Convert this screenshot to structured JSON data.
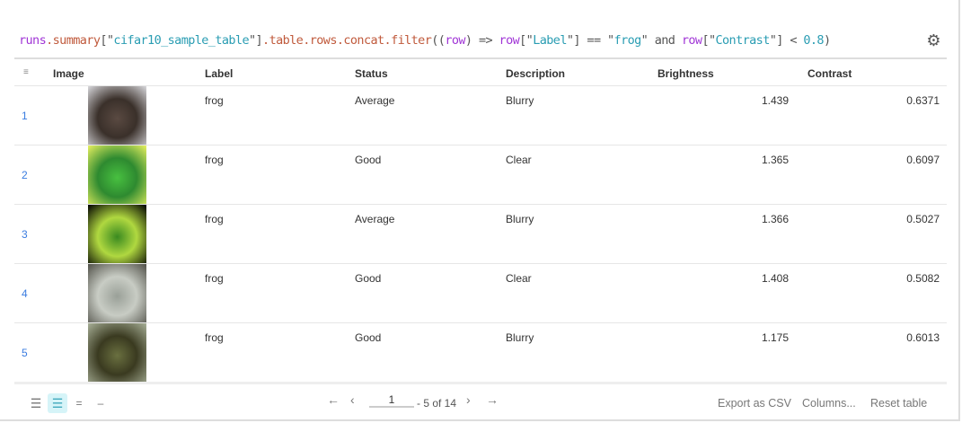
{
  "query": {
    "p1": "runs",
    "o1": ".summary",
    "d1": "[\"",
    "s1": "cifar10_sample_table",
    "d2": "\"]",
    "o2": ".table.rows.concat.filter",
    "d3": "((",
    "p2": "row",
    "d4": ") => ",
    "p3": "row",
    "d5": "[\"",
    "s2": "Label",
    "d6": "\"] == \"",
    "s3": "frog",
    "d7": "\" and ",
    "p4": "row",
    "d8": "[\"",
    "s4": "Contrast",
    "d9": "\"] < ",
    "s5": "0.8",
    "d10": ")"
  },
  "settings_icon": "gear-icon",
  "columns": [
    "Image",
    "Label",
    "Status",
    "Description",
    "Brightness",
    "Contrast"
  ],
  "rows": [
    {
      "index": "1",
      "label": "frog",
      "status": "Average",
      "description": "Blurry",
      "brightness": "1.439",
      "contrast": "0.6371",
      "colors": [
        "#d8d8dc",
        "#5a4a42",
        "#3a302a"
      ]
    },
    {
      "index": "2",
      "label": "frog",
      "status": "Good",
      "description": "Clear",
      "brightness": "1.365",
      "contrast": "0.6097",
      "colors": [
        "#e8f060",
        "#48c040",
        "#2e8a30"
      ]
    },
    {
      "index": "3",
      "label": "frog",
      "status": "Average",
      "description": "Blurry",
      "brightness": "1.366",
      "contrast": "0.5027",
      "colors": [
        "#000000",
        "#3a8a20",
        "#b0d840"
      ]
    },
    {
      "index": "4",
      "label": "frog",
      "status": "Good",
      "description": "Clear",
      "brightness": "1.408",
      "contrast": "0.5082",
      "colors": [
        "#505048",
        "#9aa098",
        "#c8ccc4"
      ]
    },
    {
      "index": "5",
      "label": "frog",
      "status": "Good",
      "description": "Blurry",
      "brightness": "1.175",
      "contrast": "0.6013",
      "colors": [
        "#a8b098",
        "#6a7040",
        "#3a3a20"
      ]
    }
  ],
  "footer": {
    "page": "1",
    "page_text": "- 5 of 14",
    "export": "Export as CSV",
    "columns": "Columns...",
    "reset": "Reset table",
    "active_view": 1
  }
}
